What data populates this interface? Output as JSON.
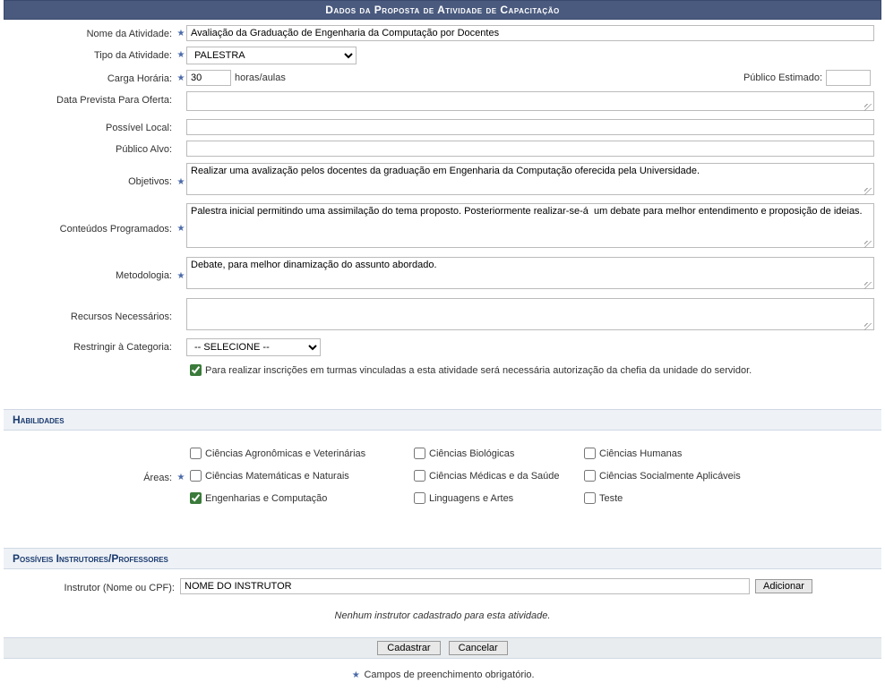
{
  "header": "Dados da Proposta de Atividade de Capacitação",
  "labels": {
    "nome": "Nome da Atividade:",
    "tipo": "Tipo da Atividade:",
    "carga": "Carga Horária:",
    "horas_sufixo": "horas/aulas",
    "publico_estimado": "Público Estimado:",
    "data_prevista": "Data Prevista Para Oferta:",
    "possivel_local": "Possível Local:",
    "publico_alvo": "Público Alvo:",
    "objetivos": "Objetivos:",
    "conteudos": "Conteúdos Programados:",
    "metodologia": "Metodologia:",
    "recursos": "Recursos Necessários:",
    "restringir": "Restringir à Categoria:",
    "areas": "Áreas:",
    "instrutor": "Instrutor (Nome ou CPF):"
  },
  "values": {
    "nome": "Avaliação da Graduação de Engenharia da Computação por Docentes",
    "tipo": "PALESTRA",
    "carga": "30",
    "publico_estimado": "",
    "data_prevista": "",
    "possivel_local": "",
    "publico_alvo": "",
    "objetivos": "Realizar uma avalização pelos docentes da graduação em Engenharia da Computação oferecida pela Universidade.",
    "conteudos": "Palestra inicial permitindo uma assimilação do tema proposto. Posteriormente realizar-se-á  um debate para melhor entendimento e proposição de ideias.",
    "metodologia": "Debate, para melhor dinamização do assunto abordado.",
    "recursos": "",
    "restringir": "-- SELECIONE --",
    "autorizacao_chefia_checked": true,
    "instrutor": "NOME DO INSTRUTOR"
  },
  "autorizacao_text": "Para realizar inscrições em turmas vinculadas a esta atividade será necessária autorização da chefia da unidade do servidor.",
  "section_habilidades": "Habilidades",
  "areas": [
    {
      "label": "Ciências Agronômicas e Veterinárias",
      "checked": false
    },
    {
      "label": "Ciências Biológicas",
      "checked": false
    },
    {
      "label": "Ciências Humanas",
      "checked": false
    },
    {
      "label": "Ciências Matemáticas e Naturais",
      "checked": false
    },
    {
      "label": "Ciências Médicas e da Saúde",
      "checked": false
    },
    {
      "label": "Ciências Socialmente Aplicáveis",
      "checked": false
    },
    {
      "label": "Engenharias e Computação",
      "checked": true
    },
    {
      "label": "Linguagens e Artes",
      "checked": false
    },
    {
      "label": "Teste",
      "checked": false
    }
  ],
  "section_instrutores": "Possíveis Instrutores/Professores",
  "btn_adicionar": "Adicionar",
  "msg_nenhum_instrutor": "Nenhum instrutor cadastrado para esta atividade.",
  "btn_cadastrar": "Cadastrar",
  "btn_cancelar": "Cancelar",
  "footnote": "Campos de preenchimento obrigatório.",
  "colors": {
    "header_bg": "#4a5a7e",
    "section_bg": "#eef2f7",
    "section_text": "#1a3a6e",
    "star": "#4a6aaa"
  }
}
